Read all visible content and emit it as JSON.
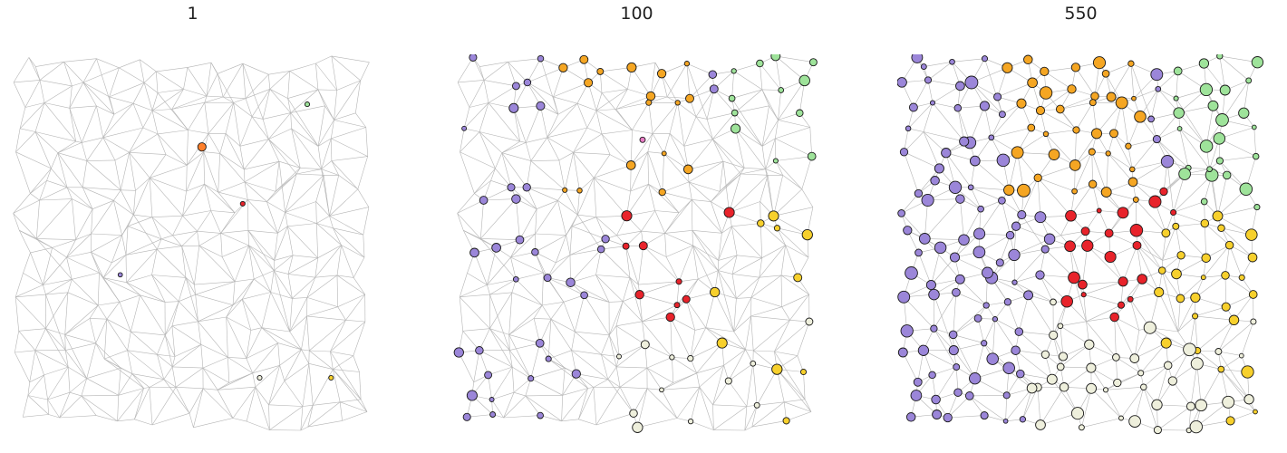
{
  "figure": {
    "panels": [
      {
        "title": "1"
      },
      {
        "title": "100"
      },
      {
        "title": "550"
      }
    ]
  },
  "colors": {
    "edge": "#b5b5b5",
    "node_outline": "#1a1a1a",
    "purple": "#9b86d9",
    "orange": "#f5a623",
    "bright_orange": "#ff7f2a",
    "green": "#9ee39a",
    "red": "#e8232b",
    "yellow": "#f7d02c",
    "cream": "#eeefdc",
    "pink": "#e87dc5"
  }
}
